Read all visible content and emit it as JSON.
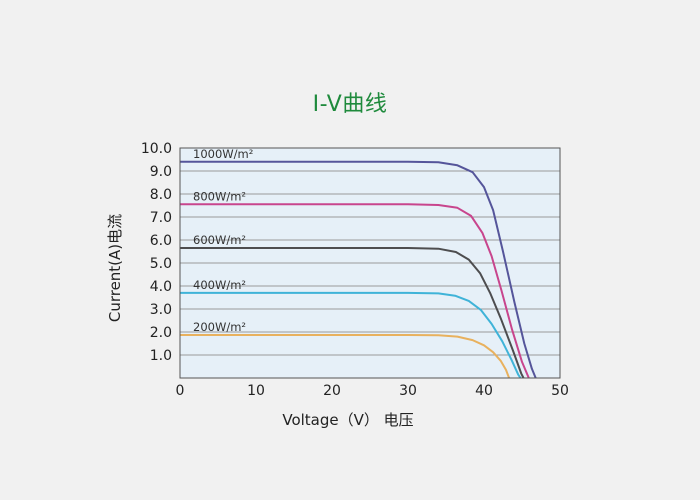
{
  "chart_data": {
    "type": "line",
    "title": "I-V曲线",
    "xlabel": "Voltage（V） 电压",
    "ylabel": "Current(A)电流",
    "xlim": [
      0,
      50
    ],
    "ylim": [
      0,
      10
    ],
    "x_ticks": [
      "0",
      "10",
      "20",
      "30",
      "40",
      "50"
    ],
    "y_ticks": [
      "1.0",
      "2.0",
      "3.0",
      "4.0",
      "5.0",
      "6.0",
      "7.0",
      "8.0",
      "9.0",
      "10.0"
    ],
    "grid": true,
    "colors": {
      "plot_background": "#e6f0f8",
      "grid": "#9a9a9a",
      "title": "#1e8a3c"
    },
    "series": [
      {
        "name": "1000W/m²",
        "color": "#55559a",
        "points": [
          [
            0,
            9.4
          ],
          [
            10,
            9.4
          ],
          [
            20,
            9.4
          ],
          [
            30,
            9.4
          ],
          [
            34,
            9.38
          ],
          [
            36.5,
            9.25
          ],
          [
            38.5,
            8.95
          ],
          [
            40,
            8.3
          ],
          [
            41.2,
            7.3
          ],
          [
            42.5,
            5.5
          ],
          [
            44,
            3.3
          ],
          [
            45.3,
            1.5
          ],
          [
            46.3,
            0.4
          ],
          [
            46.8,
            0
          ]
        ]
      },
      {
        "name": "800W/m²",
        "color": "#c8458d",
        "points": [
          [
            0,
            7.55
          ],
          [
            10,
            7.55
          ],
          [
            20,
            7.55
          ],
          [
            30,
            7.55
          ],
          [
            34,
            7.52
          ],
          [
            36.5,
            7.4
          ],
          [
            38.3,
            7.05
          ],
          [
            39.8,
            6.3
          ],
          [
            41,
            5.3
          ],
          [
            42.3,
            3.8
          ],
          [
            43.7,
            2.1
          ],
          [
            45,
            0.7
          ],
          [
            45.9,
            0
          ]
        ]
      },
      {
        "name": "600W/m²",
        "color": "#4d4d4f",
        "points": [
          [
            0,
            5.65
          ],
          [
            10,
            5.65
          ],
          [
            20,
            5.65
          ],
          [
            30,
            5.65
          ],
          [
            34,
            5.62
          ],
          [
            36.3,
            5.48
          ],
          [
            38,
            5.15
          ],
          [
            39.5,
            4.55
          ],
          [
            40.8,
            3.7
          ],
          [
            42.2,
            2.6
          ],
          [
            43.8,
            1.2
          ],
          [
            44.9,
            0.2
          ],
          [
            45.2,
            0
          ]
        ]
      },
      {
        "name": "400W/m²",
        "color": "#3fb3d8",
        "points": [
          [
            0,
            3.7
          ],
          [
            10,
            3.7
          ],
          [
            20,
            3.7
          ],
          [
            30,
            3.7
          ],
          [
            34,
            3.68
          ],
          [
            36.2,
            3.58
          ],
          [
            38,
            3.35
          ],
          [
            39.6,
            2.95
          ],
          [
            41,
            2.35
          ],
          [
            42.4,
            1.6
          ],
          [
            43.6,
            0.8
          ],
          [
            44.5,
            0.15
          ],
          [
            44.8,
            0
          ]
        ]
      },
      {
        "name": "200W/m²",
        "color": "#e8b15e",
        "points": [
          [
            0,
            1.87
          ],
          [
            10,
            1.87
          ],
          [
            20,
            1.87
          ],
          [
            30,
            1.87
          ],
          [
            34,
            1.86
          ],
          [
            36.5,
            1.8
          ],
          [
            38.5,
            1.65
          ],
          [
            40,
            1.42
          ],
          [
            41.2,
            1.12
          ],
          [
            42.2,
            0.75
          ],
          [
            42.9,
            0.35
          ],
          [
            43.3,
            0
          ]
        ]
      }
    ]
  }
}
